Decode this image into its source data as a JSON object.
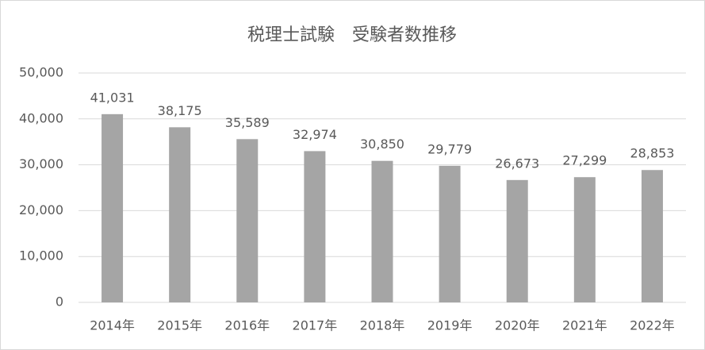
{
  "chart_data": {
    "type": "bar",
    "title": "税理士試験　受験者数推移",
    "categories": [
      "2014年",
      "2015年",
      "2016年",
      "2017年",
      "2018年",
      "2019年",
      "2020年",
      "2021年",
      "2022年"
    ],
    "values": [
      41031,
      38175,
      35589,
      32974,
      30850,
      29779,
      26673,
      27299,
      28853
    ],
    "value_labels": [
      "41,031",
      "38,175",
      "35,589",
      "32,974",
      "30,850",
      "29,779",
      "26,673",
      "27,299",
      "28,853"
    ],
    "color": "#a5a5a5",
    "ylim": [
      0,
      50000
    ],
    "yticks": [
      0,
      {
        "value": 10000,
        "label": "10,000"
      },
      {
        "value": 20000,
        "label": "20,000"
      },
      {
        "value": 30000,
        "label": "30,000"
      },
      {
        "value": 40000,
        "label": "40,000"
      },
      {
        "value": 50000,
        "label": "50,000"
      }
    ],
    "grid": true
  }
}
